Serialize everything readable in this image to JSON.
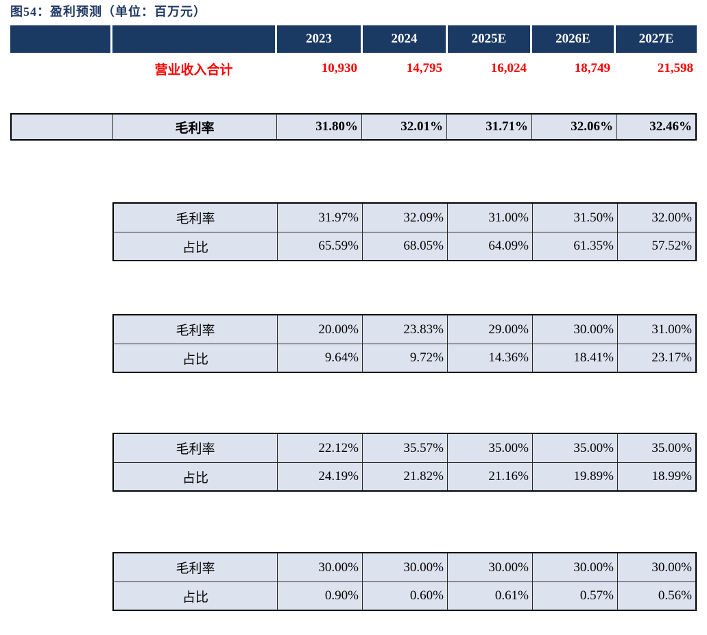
{
  "figure": {
    "title": "图54：盈利预测（单位：百万元）"
  },
  "colors": {
    "header_bg": "#1b3a63",
    "title_navy": "#1f3864",
    "row_bg": "#dce3ef",
    "revenue_red": "#ff0000",
    "border_black": "#000000"
  },
  "table": {
    "years": [
      "2023",
      "2024",
      "2025E",
      "2026E",
      "2027E"
    ],
    "revenue": {
      "label": "营业收入合计",
      "values": [
        "10,930",
        "14,795",
        "16,024",
        "18,749",
        "21,598"
      ]
    },
    "overall": {
      "label": "毛利率",
      "values": [
        "31.80%",
        "32.01%",
        "31.71%",
        "32.06%",
        "32.46%"
      ]
    },
    "sections": [
      {
        "rows": [
          {
            "label": "毛利率",
            "values": [
              "31.97%",
              "32.09%",
              "31.00%",
              "31.50%",
              "32.00%"
            ]
          },
          {
            "label": "占比",
            "values": [
              "65.59%",
              "68.05%",
              "64.09%",
              "61.35%",
              "57.52%"
            ]
          }
        ]
      },
      {
        "rows": [
          {
            "label": "毛利率",
            "values": [
              "20.00%",
              "23.83%",
              "29.00%",
              "30.00%",
              "31.00%"
            ]
          },
          {
            "label": "占比",
            "values": [
              "9.64%",
              "9.72%",
              "14.36%",
              "18.41%",
              "23.17%"
            ]
          }
        ]
      },
      {
        "rows": [
          {
            "label": "毛利率",
            "values": [
              "22.12%",
              "35.57%",
              "35.00%",
              "35.00%",
              "35.00%"
            ]
          },
          {
            "label": "占比",
            "values": [
              "24.19%",
              "21.82%",
              "21.16%",
              "19.89%",
              "18.99%"
            ]
          }
        ]
      },
      {
        "rows": [
          {
            "label": "毛利率",
            "values": [
              "30.00%",
              "30.00%",
              "30.00%",
              "30.00%",
              "30.00%"
            ]
          },
          {
            "label": "占比",
            "values": [
              "0.90%",
              "0.60%",
              "0.61%",
              "0.57%",
              "0.56%"
            ]
          }
        ]
      }
    ]
  }
}
